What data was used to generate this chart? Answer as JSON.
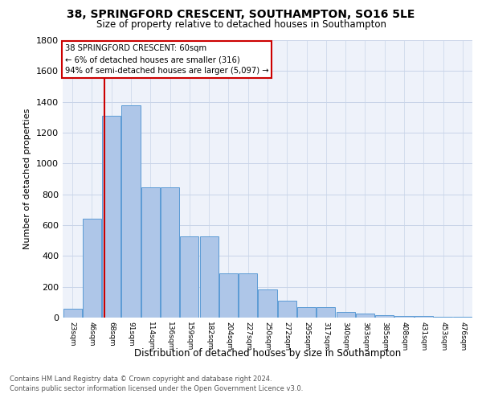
{
  "title": "38, SPRINGFORD CRESCENT, SOUTHAMPTON, SO16 5LE",
  "subtitle": "Size of property relative to detached houses in Southampton",
  "xlabel": "Distribution of detached houses by size in Southampton",
  "ylabel": "Number of detached properties",
  "footer_line1": "Contains HM Land Registry data © Crown copyright and database right 2024.",
  "footer_line2": "Contains public sector information licensed under the Open Government Licence v3.0.",
  "bin_labels": [
    "23sqm",
    "46sqm",
    "68sqm",
    "91sqm",
    "114sqm",
    "136sqm",
    "159sqm",
    "182sqm",
    "204sqm",
    "227sqm",
    "250sqm",
    "272sqm",
    "295sqm",
    "317sqm",
    "340sqm",
    "363sqm",
    "385sqm",
    "408sqm",
    "431sqm",
    "453sqm",
    "476sqm"
  ],
  "bar_values": [
    55,
    640,
    1310,
    1375,
    845,
    845,
    525,
    525,
    285,
    285,
    185,
    108,
    68,
    68,
    35,
    25,
    18,
    10,
    8,
    5,
    3
  ],
  "bar_color": "#aec6e8",
  "bar_edgecolor": "#5b9bd5",
  "property_line_color": "#cc0000",
  "ylim": [
    0,
    1800
  ],
  "annotation_title": "38 SPRINGFORD CRESCENT: 60sqm",
  "annotation_line1": "← 6% of detached houses are smaller (316)",
  "annotation_line2": "94% of semi-detached houses are larger (5,097) →",
  "annotation_box_color": "#cc0000",
  "grid_color": "#c8d4e8",
  "bg_color": "#eef2fa",
  "title_fontsize": 10,
  "subtitle_fontsize": 8.5
}
